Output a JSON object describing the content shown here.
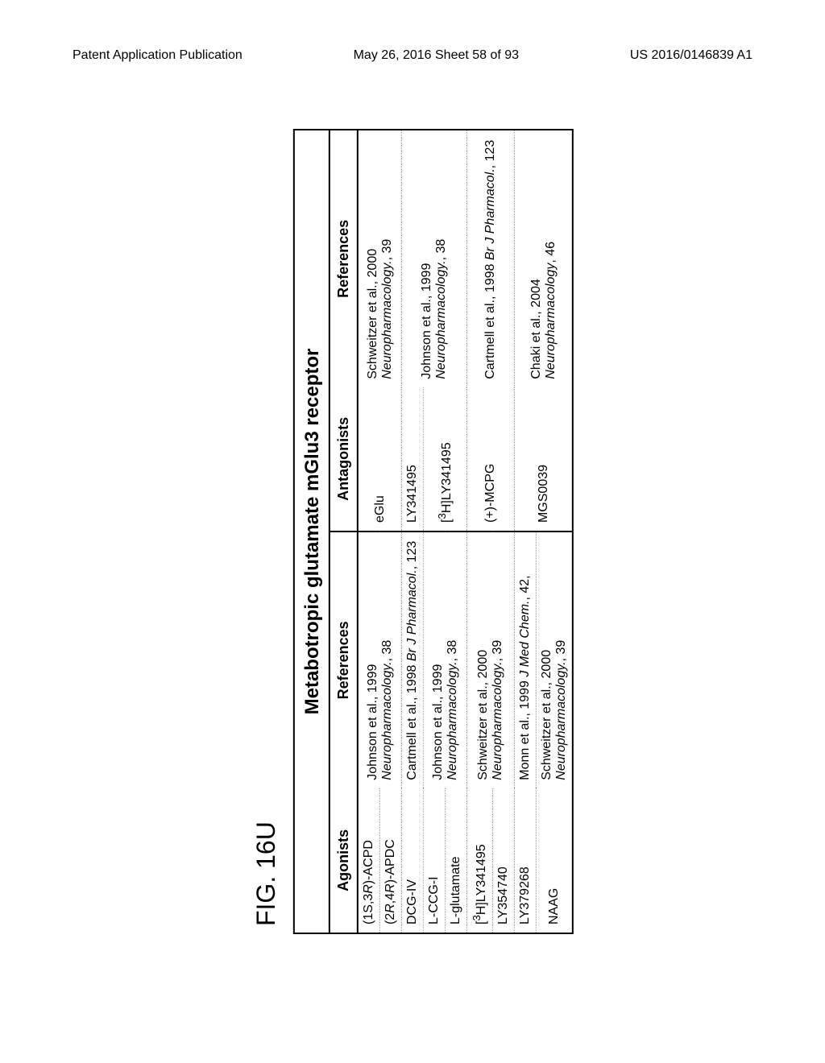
{
  "header": {
    "left": "Patent Application Publication",
    "center": "May 26, 2016  Sheet 58 of 93",
    "right": "US 2016/0146839 A1"
  },
  "figure_label": "FIG. 16U",
  "table": {
    "title": "Metabotropic glutamate mGlu3 receptor",
    "columns": {
      "agonists": "Agonists",
      "references1": "References",
      "antagonists": "Antagonists",
      "references2": "References"
    },
    "background_color": "#ffffff",
    "border_color": "#000000",
    "title_fontsize": 24,
    "header_fontsize": 18,
    "cell_fontsize": 16,
    "rows": {
      "r1": {
        "agonist": "(1S,3R)-ACPD",
        "ref1_line1": "Johnson et al., 1999",
        "ref1_line2_italic": "Neuropharmacology.",
        "ref1_line2_rest": ", 38",
        "antagonist": "eGlu",
        "ref2_line1": "Schweitzer et al., 2000",
        "ref2_line2_italic": "Neuropharmacology.",
        "ref2_line2_rest": ", 39"
      },
      "r2": {
        "agonist_prefix": "(2",
        "agonist_r1": "R",
        "agonist_mid": ",4",
        "agonist_r2": "R",
        "agonist_suffix": ")-APDC"
      },
      "r3": {
        "agonist": "DCG-IV",
        "ref1_line1": "Cartmell et al., 1998 ",
        "ref1_line1_italic": "Br J Pharmacol.",
        "ref1_line1_rest": ", 123",
        "antagonist": "LY341495",
        "ref2": ""
      },
      "r4": {
        "agonist": "L-CCG-I",
        "ref1_line1": "Johnson et al., 1999",
        "ref1_line2_italic": "Neuropharmacology.",
        "ref1_line2_rest": ", 38",
        "antagonist_prefix": "[",
        "antagonist_sup": "3",
        "antagonist_suffix": "H]LY341495",
        "ref2_line1": "Johnson et al., 1999",
        "ref2_line2_italic": "Neuropharmacology.",
        "ref2_line2_rest": ", 38"
      },
      "r5": {
        "agonist": "L-glutamate"
      },
      "r6": {
        "agonist_prefix": "[",
        "agonist_sup": "3",
        "agonist_suffix": "H]LY341495",
        "ref1_line1": "Schweitzer et al., 2000",
        "ref1_line2_italic": "Neuropharmacology.",
        "ref1_line2_rest": ", 39",
        "antagonist": "(+)-MCPG",
        "ref2_line1": "Cartmell et al., 1998 ",
        "ref2_line1_italic": "Br J Pharmacol.",
        "ref2_line1_rest": ", 123"
      },
      "r7": {
        "agonist": "LY354740"
      },
      "r8": {
        "agonist": "LY379268",
        "ref1_line1": "Monn et al., 1999 ",
        "ref1_line1_italic": "J Med Chem.",
        "ref1_line1_rest": ", 42,",
        "antagonist": "MGS0039",
        "ref2_line1": "Chaki et al., 2004",
        "ref2_line2_italic": "Neuropharmacology",
        "ref2_line2_rest": ", 46"
      },
      "r9": {
        "agonist": "NAAG",
        "ref1_line1": "Schweitzer et al., 2000",
        "ref1_line2_italic": "Neuropharmacology.",
        "ref1_line2_rest": ", 39"
      }
    }
  }
}
